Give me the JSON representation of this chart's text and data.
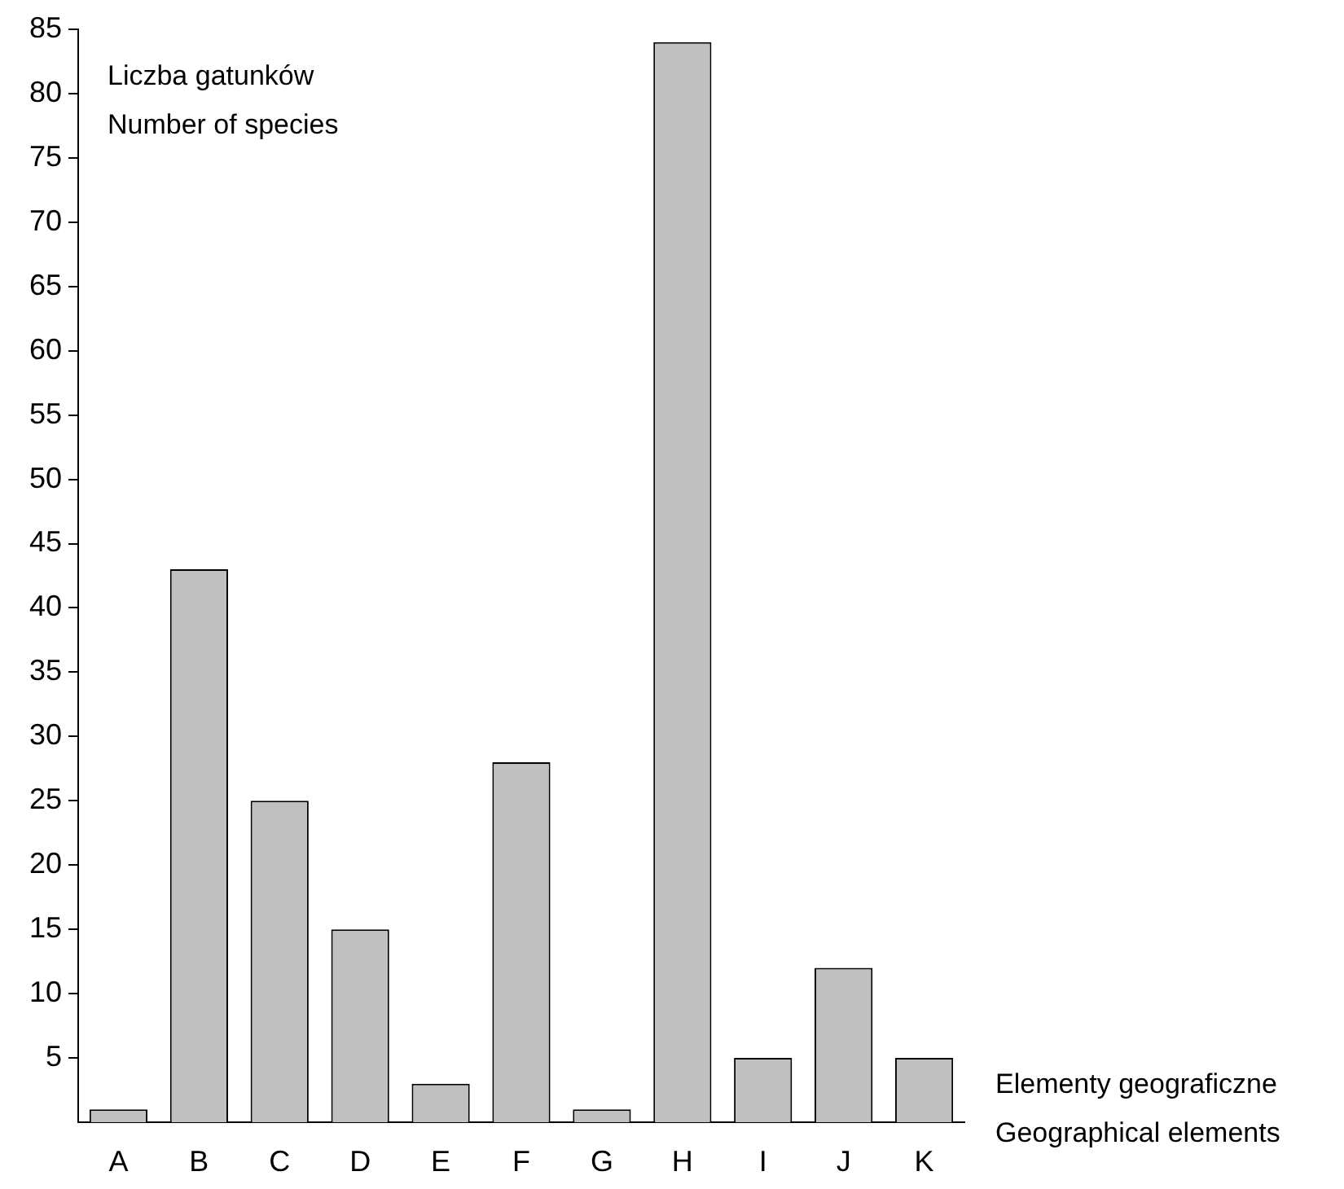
{
  "chart_data": {
    "type": "bar",
    "ylabel": "Liczba gatunków\nNumber of species",
    "xlabel": "Elementy geograficzne\nGeographical elements",
    "categories": [
      "A",
      "B",
      "C",
      "D",
      "E",
      "F",
      "G",
      "H",
      "I",
      "J",
      "K"
    ],
    "values": [
      1,
      43,
      25,
      15,
      3,
      28,
      1,
      84,
      5,
      12,
      5
    ],
    "color": "#c0c0c0",
    "ylim": [
      0,
      85
    ],
    "yticks": [
      5,
      10,
      15,
      20,
      25,
      30,
      35,
      40,
      45,
      50,
      55,
      60,
      65,
      70,
      75,
      80,
      85
    ],
    "grid": false,
    "legend": false
  }
}
